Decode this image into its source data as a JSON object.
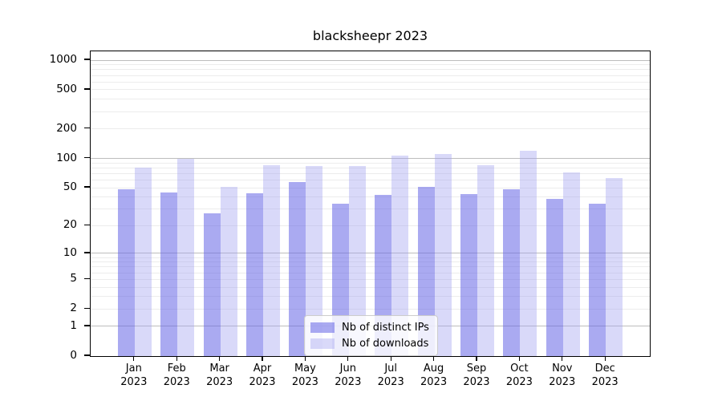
{
  "chart_data": {
    "type": "bar",
    "title": "blacksheepr 2023",
    "categories": [
      "Jan",
      "Feb",
      "Mar",
      "Apr",
      "May",
      "Jun",
      "Jul",
      "Aug",
      "Sep",
      "Oct",
      "Nov",
      "Dec"
    ],
    "category_year": "2023",
    "series": [
      {
        "name": "Nb of distinct IPs",
        "fill": "rgba(100,100,230,0.55)",
        "color_hex": "#a8a8f2",
        "values": [
          48,
          45,
          27,
          44,
          57,
          34,
          42,
          51,
          43,
          48,
          38,
          34
        ]
      },
      {
        "name": "Nb of downloads",
        "fill": "rgba(160,160,240,0.40)",
        "color_hex": "#d9d9f9",
        "values": [
          80,
          100,
          51,
          85,
          84,
          83,
          107,
          112,
          85,
          120,
          72,
          63
        ]
      }
    ],
    "y_axis": {
      "scale": "symlog",
      "transform": "ln(1+y)",
      "ylim": [
        0,
        1229
      ],
      "ticks": [
        0,
        1,
        2,
        5,
        10,
        20,
        50,
        100,
        200,
        500,
        1000
      ],
      "major_gridlines": [
        1,
        10,
        100,
        1000
      ],
      "minor_gridlines": [
        2,
        3,
        4,
        5,
        6,
        7,
        8,
        9,
        20,
        30,
        40,
        50,
        60,
        70,
        80,
        90,
        200,
        300,
        400,
        500,
        600,
        700,
        800,
        900
      ]
    },
    "xlabel": "",
    "ylabel": "",
    "legend_position": "lower center inside plot",
    "grid": true
  },
  "colors": {
    "background": "#ffffff",
    "spine": "#000000",
    "text": "#000000",
    "major_grid": "#bdbdbd",
    "minor_grid": "#ececec",
    "legend_bg": "rgba(255,255,255,0.8)",
    "legend_border": "#cccccc"
  }
}
